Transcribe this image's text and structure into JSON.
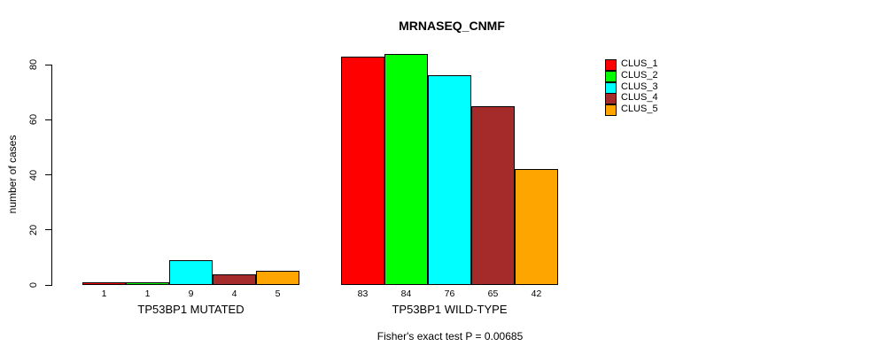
{
  "title": "MRNASEQ_CNMF",
  "chart_data": {
    "type": "bar",
    "title": "MRNASEQ_CNMF",
    "xlabel": "",
    "ylabel": "number of cases",
    "ylim": [
      0,
      80
    ],
    "yticks": [
      0,
      20,
      40,
      60,
      80
    ],
    "grid": false,
    "legend_position": "right",
    "categories": [
      "TP53BP1 MUTATED",
      "TP53BP1 WILD-TYPE"
    ],
    "groups": [
      {
        "label": "TP53BP1 MUTATED",
        "values": [
          1,
          1,
          9,
          4,
          5
        ]
      },
      {
        "label": "TP53BP1 WILD-TYPE",
        "values": [
          83,
          84,
          76,
          65,
          42
        ]
      }
    ],
    "series_colors": [
      "#FF0000",
      "#00FF00",
      "#00FFFF",
      "#A52A2A",
      "#FFA500"
    ],
    "legend": [
      {
        "label": "CLUS_1",
        "color": "#FF0000"
      },
      {
        "label": "CLUS_2",
        "color": "#00FF00"
      },
      {
        "label": "CLUS_3",
        "color": "#00FFFF"
      },
      {
        "label": "CLUS_4",
        "color": "#A52A2A"
      },
      {
        "label": "CLUS_5",
        "color": "#FFA500"
      }
    ],
    "annotation": "Fisher's exact test P = 0.00685"
  }
}
